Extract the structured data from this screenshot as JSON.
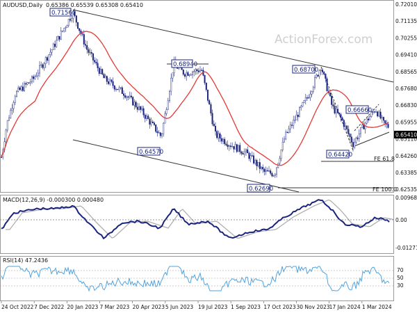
{
  "main_panel": {
    "title": "AUDUSD,Daily",
    "ohlc": "0.65386 0.65539 0.65308 0.65410",
    "watermark": "ActionForex.com",
    "price_ticks": [
      "0.72010",
      "0.71135",
      "0.70255",
      "0.69410",
      "0.68565",
      "0.67680",
      "0.66830",
      "0.65955",
      "0.65110",
      "0.64260",
      "0.63385",
      "0.62535"
    ],
    "current_price": "0.65410",
    "fib_labels": [
      "FE 61.8",
      "FE 100.0"
    ],
    "annotations": [
      "0.71560",
      "0.68940",
      "0.64570",
      "0.62690",
      "0.68700",
      "0.66660",
      "0.64420"
    ]
  },
  "macd_panel": {
    "title": "MACD(12,26,9) -0.000300 0.000480",
    "ticks": [
      "0.009684",
      "0.00",
      "-0.012714"
    ]
  },
  "rsi_panel": {
    "title": "RSI(14) 47.2436",
    "ticks": [
      "70",
      "50",
      "30"
    ]
  },
  "date_labels": [
    "24 Oct 2022",
    "7 Dec 2022",
    "20 Jan 2023",
    "7 Mar 2023",
    "20 Apr 2023",
    "5 Jun 2023",
    "19 Jul 2023",
    "1 Sep 2023",
    "17 Oct 2023",
    "30 Nov 2023",
    "17 Jan 2024",
    "1 Mar 2024"
  ],
  "colors": {
    "candles": "#1a237e",
    "ma": "#e53935",
    "macd": "#1a237e",
    "signal": "#b0b0b0",
    "rsi": "#4fa3e0",
    "channel": "#333333",
    "watermark": "#cfcfcf"
  },
  "chart_data": {
    "type": "candlestick",
    "symbol": "AUDUSD",
    "timeframe": "Daily",
    "ylim": [
      0.6215,
      0.7201
    ],
    "swing_points": [
      {
        "date": "2 Feb 2023",
        "price": 0.7156
      },
      {
        "date": "13 Jun 2023",
        "price": 0.6894
      },
      {
        "date": "31 May 2023",
        "price": 0.6457
      },
      {
        "date": "26 Oct 2023",
        "price": 0.6269
      },
      {
        "date": "28 Dec 2023",
        "price": 0.687
      },
      {
        "date": "8 Mar 2024",
        "price": 0.6666
      },
      {
        "date": "13 Feb 2024",
        "price": 0.6442
      }
    ],
    "last_close": 0.6541,
    "macd": {
      "main": -0.0003,
      "signal": 0.00048
    },
    "rsi": 47.2436
  }
}
